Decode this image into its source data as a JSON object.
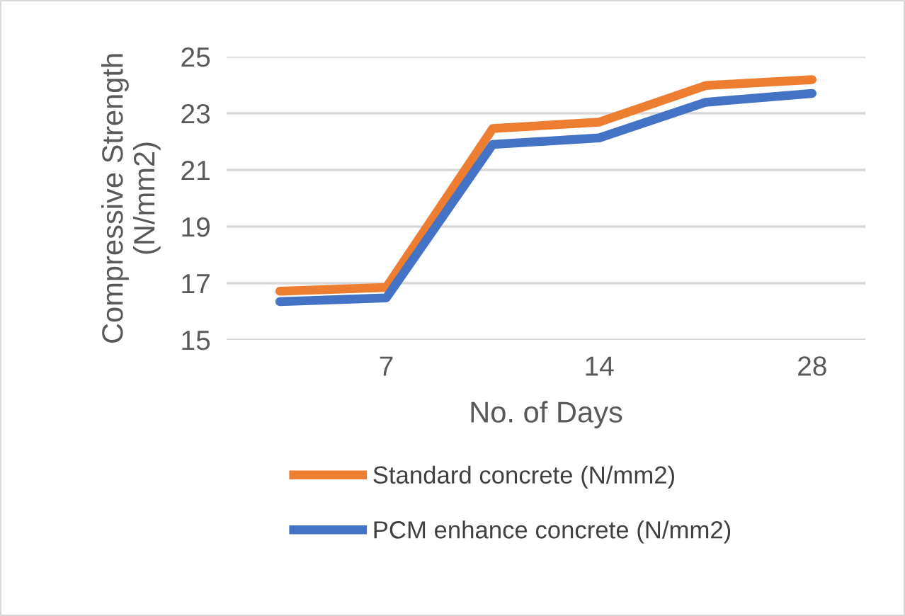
{
  "chart_data": {
    "type": "line",
    "xlabel": "No. of Days",
    "ylabel": "Compressive Strength\n(N/mm2)",
    "categories": [
      null,
      "7",
      null,
      "14",
      null,
      "28"
    ],
    "ylim": [
      15,
      25
    ],
    "yticks": [
      15,
      17,
      19,
      21,
      23,
      25
    ],
    "series": [
      {
        "name": "Standard concrete (N/mm2)",
        "color": "#ed7d31",
        "values": [
          16.72,
          16.85,
          22.46,
          22.69,
          23.98,
          24.19
        ]
      },
      {
        "name": "PCM enhance concrete (N/mm2)",
        "color": "#4472c4",
        "values": [
          16.35,
          16.48,
          21.9,
          22.13,
          23.39,
          23.7
        ]
      }
    ],
    "grid": "y",
    "legend": "bottom",
    "marker": "none",
    "line_style": "solid"
  }
}
